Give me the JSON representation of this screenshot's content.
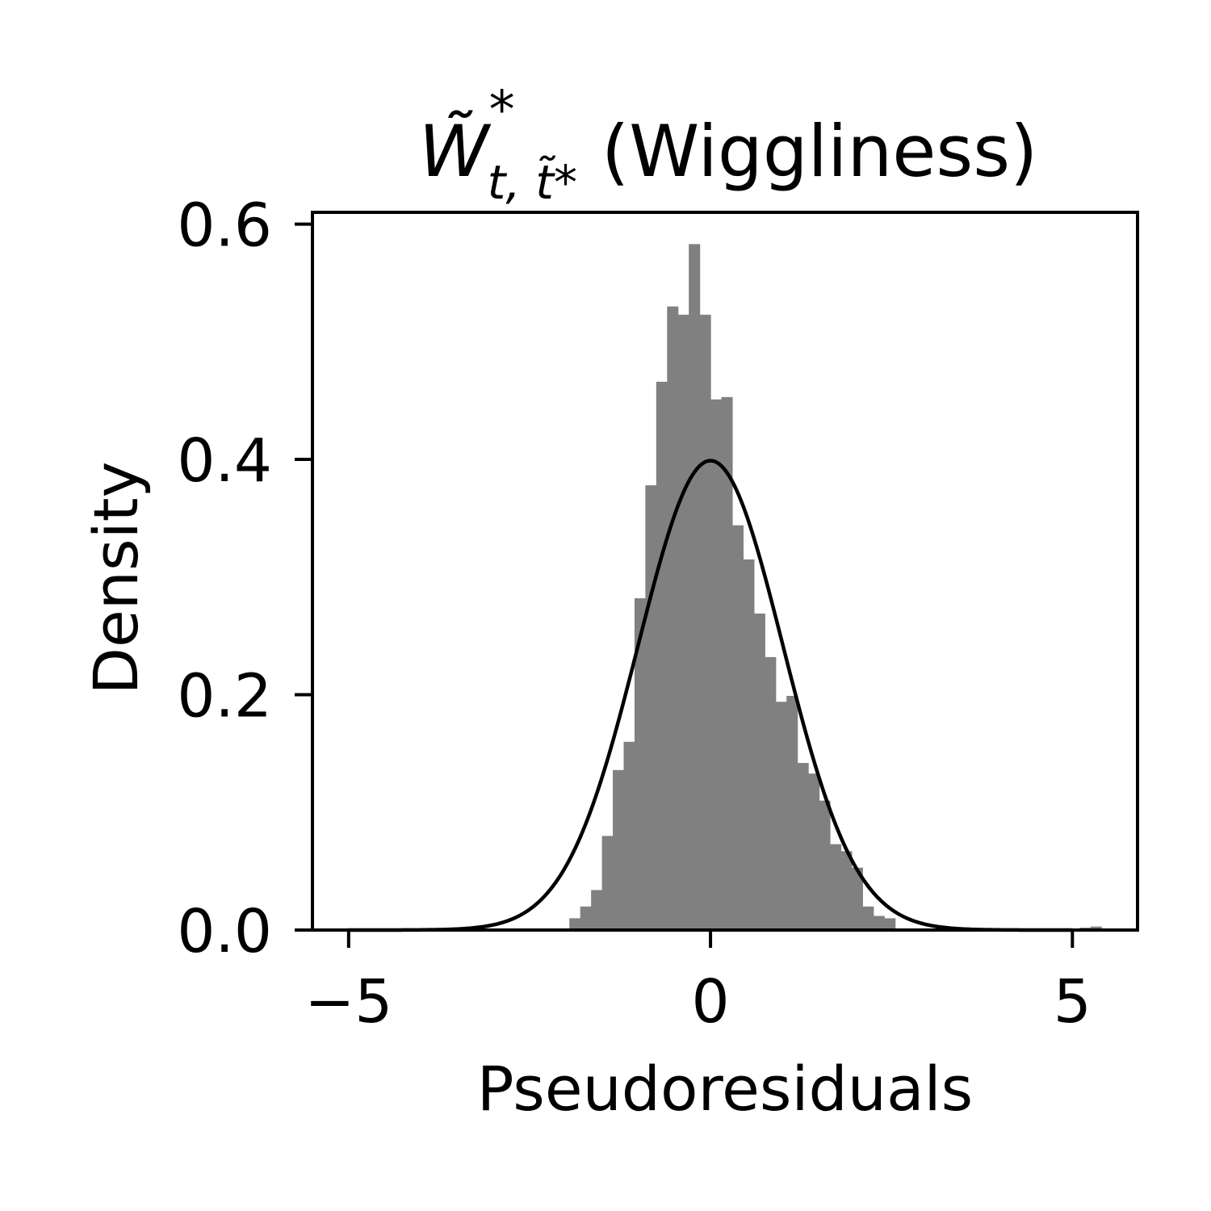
{
  "chart_data": {
    "type": "bar",
    "title": {
      "symbol": "W̃",
      "superscript": "*",
      "subscript": "t, t̃*",
      "text": "(Wiggliness)"
    },
    "xlabel": "Pseudoresiduals",
    "ylabel": "Density",
    "xlim": [
      -5.5,
      5.9
    ],
    "ylim": [
      0,
      0.61
    ],
    "xticks": [
      -5,
      0,
      5
    ],
    "xtick_labels": [
      "−5",
      "0",
      "5"
    ],
    "yticks": [
      0.0,
      0.2,
      0.4,
      0.6
    ],
    "ytick_labels": [
      "0.0",
      "0.2",
      "0.4",
      "0.6"
    ],
    "grid": false,
    "histogram": {
      "color": "#808080",
      "bin_width": 0.15,
      "bins": [
        {
          "x0": -1.95,
          "x1": -1.8,
          "density": 0.01
        },
        {
          "x0": -1.8,
          "x1": -1.65,
          "density": 0.02
        },
        {
          "x0": -1.65,
          "x1": -1.5,
          "density": 0.034
        },
        {
          "x0": -1.5,
          "x1": -1.35,
          "density": 0.08
        },
        {
          "x0": -1.35,
          "x1": -1.2,
          "density": 0.136
        },
        {
          "x0": -1.2,
          "x1": -1.05,
          "density": 0.16
        },
        {
          "x0": -1.05,
          "x1": -0.9,
          "density": 0.282
        },
        {
          "x0": -0.9,
          "x1": -0.75,
          "density": 0.378
        },
        {
          "x0": -0.75,
          "x1": -0.6,
          "density": 0.466
        },
        {
          "x0": -0.6,
          "x1": -0.45,
          "density": 0.53
        },
        {
          "x0": -0.45,
          "x1": -0.3,
          "density": 0.523
        },
        {
          "x0": -0.3,
          "x1": -0.15,
          "density": 0.583
        },
        {
          "x0": -0.15,
          "x1": 0.0,
          "density": 0.523
        },
        {
          "x0": 0.0,
          "x1": 0.15,
          "density": 0.451
        },
        {
          "x0": 0.15,
          "x1": 0.3,
          "density": 0.453
        },
        {
          "x0": 0.3,
          "x1": 0.45,
          "density": 0.344
        },
        {
          "x0": 0.45,
          "x1": 0.6,
          "density": 0.315
        },
        {
          "x0": 0.6,
          "x1": 0.75,
          "density": 0.269
        },
        {
          "x0": 0.75,
          "x1": 0.9,
          "density": 0.232
        },
        {
          "x0": 0.9,
          "x1": 1.05,
          "density": 0.194
        },
        {
          "x0": 1.05,
          "x1": 1.2,
          "density": 0.199
        },
        {
          "x0": 1.2,
          "x1": 1.35,
          "density": 0.142
        },
        {
          "x0": 1.35,
          "x1": 1.5,
          "density": 0.133
        },
        {
          "x0": 1.5,
          "x1": 1.65,
          "density": 0.11
        },
        {
          "x0": 1.65,
          "x1": 1.8,
          "density": 0.073
        },
        {
          "x0": 1.8,
          "x1": 1.95,
          "density": 0.067
        },
        {
          "x0": 1.95,
          "x1": 2.1,
          "density": 0.053
        },
        {
          "x0": 2.1,
          "x1": 2.25,
          "density": 0.02
        },
        {
          "x0": 2.25,
          "x1": 2.4,
          "density": 0.012
        },
        {
          "x0": 2.4,
          "x1": 2.55,
          "density": 0.01
        },
        {
          "x0": 4.8,
          "x1": 4.95,
          "density": 0.001
        },
        {
          "x0": 5.1,
          "x1": 5.25,
          "density": 0.002
        },
        {
          "x0": 5.25,
          "x1": 5.4,
          "density": 0.003
        }
      ]
    },
    "reference_curve": {
      "type": "normal_pdf",
      "mean": 0,
      "sd": 1,
      "color": "#000000",
      "x_range": [
        -5,
        5
      ]
    }
  }
}
